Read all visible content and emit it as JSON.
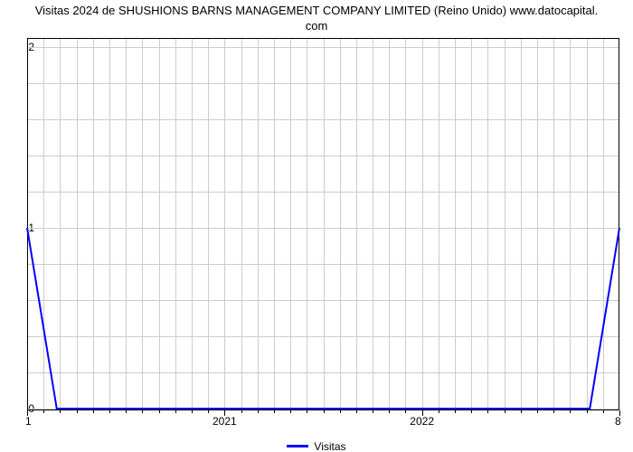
{
  "title_line1": "Visitas 2024 de SHUSHIONS BARNS MANAGEMENT COMPANY LIMITED (Reino Unido) www.datocapital.",
  "title_line2": "com",
  "title_fontsize": 13,
  "chart": {
    "type": "line",
    "background_color": "#ffffff",
    "plot_border_color": "#000000",
    "grid_color": "#cccccc",
    "line_color": "#0000ff",
    "line_width": 2,
    "ylim": [
      -0.01,
      2.05
    ],
    "ytick_major": [
      0,
      1,
      2
    ],
    "ytick_minor_count_between": 4,
    "x_major_labels": [
      "2021",
      "2022"
    ],
    "x_end_left_label": "1",
    "x_end_right_label": "8",
    "x_minor_per_segment": 11,
    "series": {
      "name": "Visitas",
      "x_frac": [
        0.0,
        0.05,
        0.95,
        1.0
      ],
      "y_val": [
        1.0,
        0.0,
        0.0,
        1.0
      ]
    }
  },
  "legend_label": "Visitas"
}
